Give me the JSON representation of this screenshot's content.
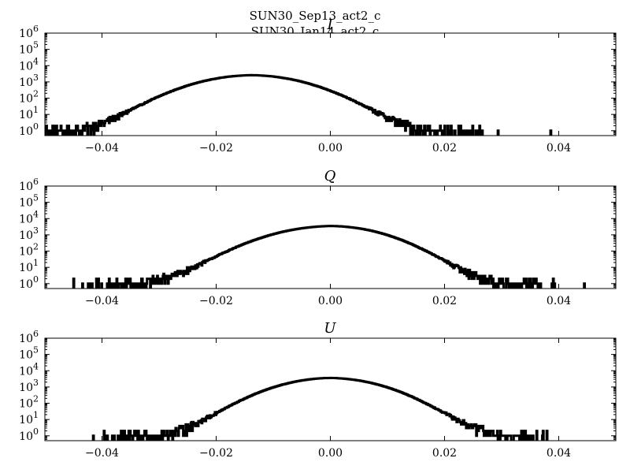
{
  "figure": {
    "title_lines": [
      "SUN30_Sep13_act2_c",
      "SUN30_Jan14_act2_c"
    ]
  },
  "chart_data": [
    {
      "type": "histogram",
      "title": "I",
      "ylog": true,
      "xlim": [
        -0.05,
        0.05
      ],
      "ylim": [
        0.5,
        1000000
      ],
      "xticks": [
        -0.04,
        -0.02,
        0.0,
        0.02,
        0.04
      ],
      "xtick_labels": [
        "−0.04",
        "−0.02",
        "0.00",
        "0.02",
        "0.04"
      ],
      "yticks": [
        1,
        10,
        100,
        1000,
        10000,
        100000,
        1000000
      ],
      "ytick_labels": [
        [
          "10",
          "0"
        ],
        [
          "10",
          "1"
        ],
        [
          "10",
          "2"
        ],
        [
          "10",
          "3"
        ],
        [
          "10",
          "4"
        ],
        [
          "10",
          "5"
        ],
        [
          "10",
          "6"
        ]
      ],
      "distribution": {
        "center": -0.0138,
        "peak": 2600,
        "sigma_left": 0.0066,
        "sigma_right": 0.0066,
        "noise_from": 0.0,
        "noise_to": -0.031,
        "support": [
          -0.05,
          0.049
        ]
      },
      "color": "#000000"
    },
    {
      "type": "histogram",
      "title": "Q",
      "ylog": true,
      "xlim": [
        -0.05,
        0.05
      ],
      "ylim": [
        0.5,
        1000000
      ],
      "xticks": [
        -0.04,
        -0.02,
        0.0,
        0.02,
        0.04
      ],
      "xtick_labels": [
        "−0.04",
        "−0.02",
        "0.00",
        "0.02",
        "0.04"
      ],
      "yticks": [
        1,
        10,
        100,
        1000,
        10000,
        100000,
        1000000
      ],
      "ytick_labels": [
        [
          "10",
          "0"
        ],
        [
          "10",
          "1"
        ],
        [
          "10",
          "2"
        ],
        [
          "10",
          "3"
        ],
        [
          "10",
          "4"
        ],
        [
          "10",
          "5"
        ],
        [
          "10",
          "6"
        ]
      ],
      "distribution": {
        "center": 0.0002,
        "peak": 3500,
        "sigma_left": 0.0068,
        "sigma_right": 0.0062,
        "noise_from": 0.013,
        "noise_to": -0.013,
        "support": [
          -0.045,
          0.045
        ]
      },
      "color": "#000000"
    },
    {
      "type": "histogram",
      "title": "U",
      "ylog": true,
      "xlim": [
        -0.05,
        0.05
      ],
      "ylim": [
        0.5,
        1000000
      ],
      "xticks": [
        -0.04,
        -0.02,
        0.0,
        0.02,
        0.04
      ],
      "xtick_labels": [
        "−0.04",
        "−0.02",
        "0.00",
        "0.02",
        "0.04"
      ],
      "yticks": [
        1,
        10,
        100,
        1000,
        10000,
        100000,
        1000000
      ],
      "ytick_labels": [
        [
          "10",
          "0"
        ],
        [
          "10",
          "1"
        ],
        [
          "10",
          "2"
        ],
        [
          "10",
          "3"
        ],
        [
          "10",
          "4"
        ],
        [
          "10",
          "5"
        ],
        [
          "10",
          "6"
        ]
      ],
      "distribution": {
        "center": 0.0,
        "peak": 3600,
        "sigma_left": 0.0062,
        "sigma_right": 0.0062,
        "noise_from": 0.012,
        "noise_to": -0.012,
        "support": [
          -0.042,
          0.038
        ]
      },
      "color": "#000000"
    }
  ]
}
